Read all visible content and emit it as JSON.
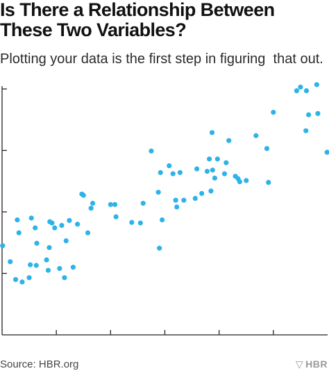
{
  "header": {
    "title_line1": "Is There a Relationship Between",
    "title_line2": "These Two Variables?",
    "subtitle": "Plotting your data is the first step in figuring  that out."
  },
  "footer": {
    "source": "Source: HBR.org",
    "logo_text": "HBR",
    "logo_mark": "▽"
  },
  "colors": {
    "point": "#2eb3e8",
    "axis": "#222222"
  },
  "chart_data": {
    "type": "scatter",
    "title": "Is There a Relationship Between These Two Variables?",
    "subtitle": "Plotting your data is the first step in figuring  that out.",
    "xlabel": "",
    "ylabel": "",
    "xlim": [
      0,
      6
    ],
    "ylim": [
      0,
      4
    ],
    "grid": false,
    "legend": "none",
    "x_ticks": [
      1,
      2,
      3,
      4,
      5
    ],
    "y_ticks": [
      1,
      2,
      3,
      4
    ],
    "points": [
      [
        0.01,
        1.45
      ],
      [
        0.15,
        1.19
      ],
      [
        0.25,
        0.9
      ],
      [
        0.28,
        1.87
      ],
      [
        0.31,
        1.66
      ],
      [
        0.37,
        0.86
      ],
      [
        0.5,
        0.93
      ],
      [
        0.52,
        1.14
      ],
      [
        0.54,
        1.9
      ],
      [
        0.61,
        1.74
      ],
      [
        0.63,
        1.13
      ],
      [
        0.64,
        1.49
      ],
      [
        0.82,
        1.22
      ],
      [
        0.85,
        1.05
      ],
      [
        0.87,
        1.42
      ],
      [
        0.88,
        1.84
      ],
      [
        0.92,
        1.82
      ],
      [
        0.97,
        1.74
      ],
      [
        1.06,
        1.08
      ],
      [
        1.1,
        1.78
      ],
      [
        1.15,
        0.93
      ],
      [
        1.18,
        1.53
      ],
      [
        1.24,
        1.86
      ],
      [
        1.31,
        1.1
      ],
      [
        1.39,
        1.8
      ],
      [
        1.47,
        2.29
      ],
      [
        1.5,
        2.27
      ],
      [
        1.58,
        1.66
      ],
      [
        1.64,
        2.06
      ],
      [
        1.67,
        2.14
      ],
      [
        2.0,
        2.12
      ],
      [
        2.08,
        2.12
      ],
      [
        2.1,
        1.92
      ],
      [
        2.39,
        1.83
      ],
      [
        2.55,
        1.82
      ],
      [
        2.6,
        2.14
      ],
      [
        2.75,
        2.99
      ],
      [
        2.88,
        2.32
      ],
      [
        2.9,
        1.41
      ],
      [
        2.92,
        2.64
      ],
      [
        2.95,
        1.87
      ],
      [
        3.08,
        2.75
      ],
      [
        3.15,
        2.62
      ],
      [
        3.2,
        2.19
      ],
      [
        3.22,
        2.08
      ],
      [
        3.28,
        2.64
      ],
      [
        3.35,
        2.19
      ],
      [
        3.56,
        2.22
      ],
      [
        3.59,
        2.7
      ],
      [
        3.68,
        2.3
      ],
      [
        3.78,
        2.66
      ],
      [
        3.82,
        2.86
      ],
      [
        3.85,
        2.34
      ],
      [
        3.87,
        3.29
      ],
      [
        3.88,
        2.68
      ],
      [
        3.92,
        2.55
      ],
      [
        3.97,
        2.86
      ],
      [
        4.1,
        2.62
      ],
      [
        4.13,
        2.8
      ],
      [
        4.18,
        3.16
      ],
      [
        4.3,
        2.58
      ],
      [
        4.35,
        2.54
      ],
      [
        4.38,
        2.49
      ],
      [
        4.5,
        2.51
      ],
      [
        4.68,
        3.24
      ],
      [
        4.88,
        3.03
      ],
      [
        4.91,
        2.48
      ],
      [
        5.0,
        3.62
      ],
      [
        5.43,
        3.97
      ],
      [
        5.5,
        4.03
      ],
      [
        5.6,
        3.32
      ],
      [
        5.61,
        3.97
      ],
      [
        5.65,
        3.58
      ],
      [
        5.8,
        4.07
      ],
      [
        5.82,
        3.6
      ],
      [
        5.99,
        2.97
      ]
    ]
  }
}
